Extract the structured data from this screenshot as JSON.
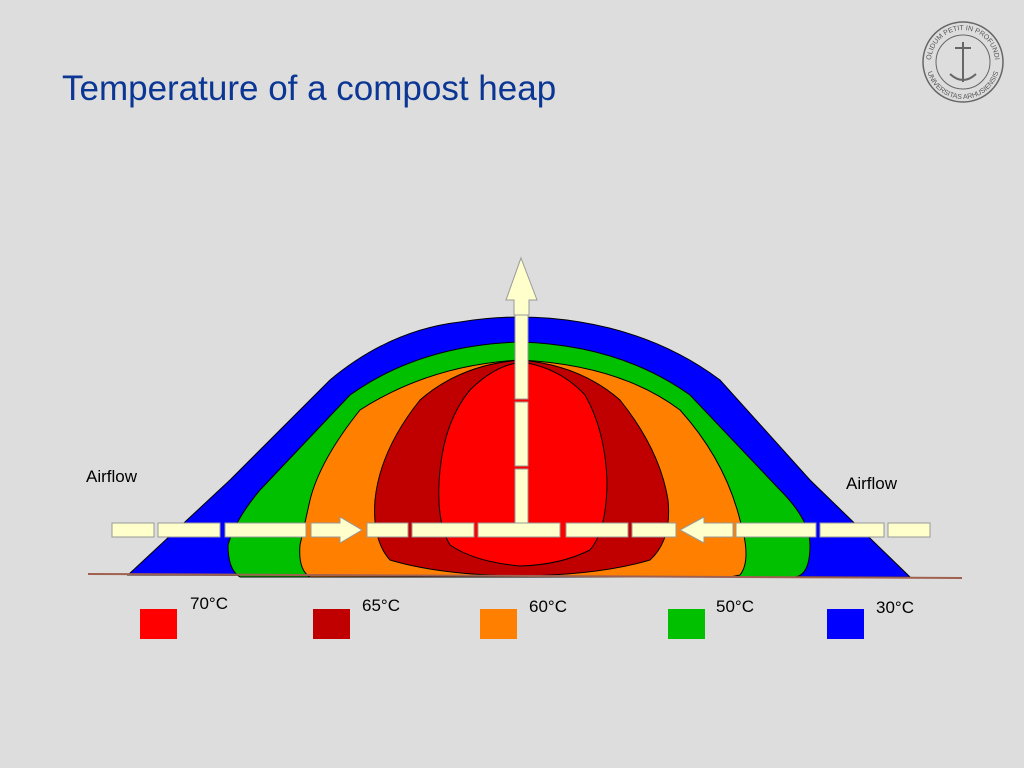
{
  "header": {
    "title": "Temperature of a compost heap"
  },
  "logo": {
    "motto": "SOLIDUM PETIT IN PROFUNDIS",
    "name": "UNIVERSITAS ARHUSIENSIS"
  },
  "labels": {
    "airflow_left": "Airflow",
    "airflow_right": "Airflow"
  },
  "legend": {
    "items": [
      {
        "label": "70°C",
        "color": "#ff0000"
      },
      {
        "label": "65°C",
        "color": "#c00000"
      },
      {
        "label": "60°C",
        "color": "#ff8000"
      },
      {
        "label": "50°C",
        "color": "#00c000"
      },
      {
        "label": "30°C",
        "color": "#0000ff"
      }
    ]
  }
}
